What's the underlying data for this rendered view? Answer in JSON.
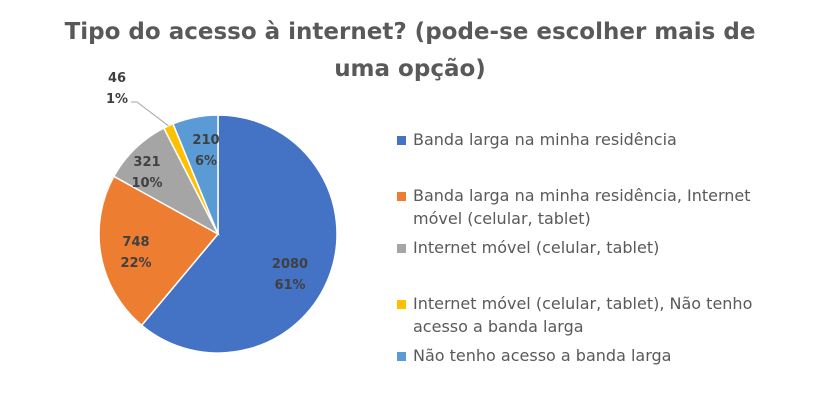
{
  "chart_data": {
    "type": "pie",
    "title": "Tipo do acesso à internet? (pode-se escolher mais de uma opção)",
    "legend_position": "right",
    "slices": [
      {
        "label": "Banda larga na minha residência",
        "value": 2080,
        "percent": "61%",
        "color": "#4472C4"
      },
      {
        "label": "Banda larga na minha residência, Internet móvel (celular, tablet)",
        "value": 748,
        "percent": "22%",
        "color": "#ED7D31"
      },
      {
        "label": "Internet móvel (celular, tablet)",
        "value": 321,
        "percent": "10%",
        "color": "#A5A5A5"
      },
      {
        "label": "Internet móvel (celular, tablet), Não tenho acesso a banda larga",
        "value": 46,
        "percent": "1%",
        "color": "#FFC000"
      },
      {
        "label": "Não tenho acesso a banda larga",
        "value": 210,
        "percent": "6%",
        "color": "#5B9BD5"
      }
    ]
  }
}
